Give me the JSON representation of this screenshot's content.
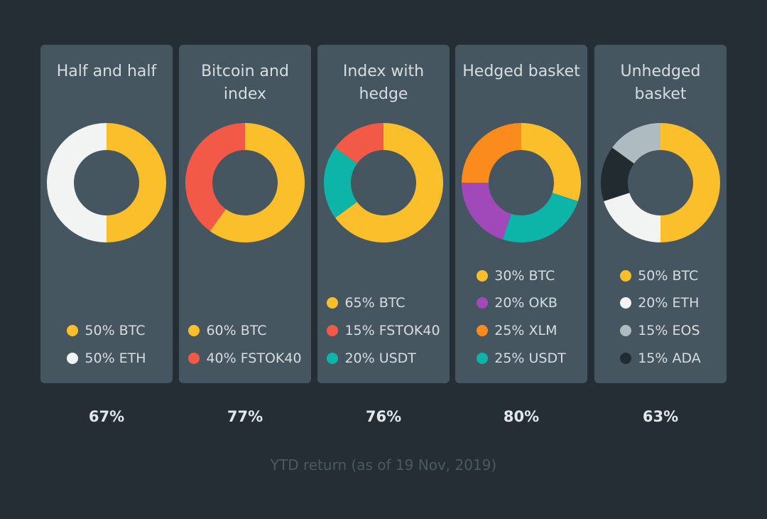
{
  "chart_data": {
    "type": "pie",
    "subtype": "donut",
    "caption": "YTD return (as of 19 Nov, 2019)",
    "colors": {
      "BTC": "#fbbf2c",
      "ETH": "#f2f3f3",
      "FSTOK40": "#f25a47",
      "USDT": "#0db5a8",
      "OKB": "#a148bb",
      "XLM": "#fb8b1c",
      "EOS": "#aebbc0",
      "ADA": "#222b30"
    },
    "portfolios": [
      {
        "title": "Half and half",
        "return": "67%",
        "slices": [
          {
            "asset": "BTC",
            "value": 50,
            "label": "50% BTC"
          },
          {
            "asset": "ETH",
            "value": 50,
            "label": "50% ETH"
          }
        ]
      },
      {
        "title": "Bitcoin and index",
        "return": "77%",
        "slices": [
          {
            "asset": "BTC",
            "value": 60,
            "label": "60% BTC"
          },
          {
            "asset": "FSTOK40",
            "value": 40,
            "label": "40% FSTOK40"
          }
        ]
      },
      {
        "title": "Index with hedge",
        "return": "76%",
        "slices": [
          {
            "asset": "BTC",
            "value": 65,
            "label": "65% BTC"
          },
          {
            "asset": "FSTOK40",
            "value": 15,
            "label": "15% FSTOK40"
          },
          {
            "asset": "USDT",
            "value": 20,
            "label": "20% USDT"
          }
        ],
        "draw_order": [
          0,
          2,
          1
        ]
      },
      {
        "title": "Hedged basket",
        "return": "80%",
        "slices": [
          {
            "asset": "BTC",
            "value": 30,
            "label": "30% BTC"
          },
          {
            "asset": "OKB",
            "value": 20,
            "label": "20% OKB"
          },
          {
            "asset": "XLM",
            "value": 25,
            "label": "25% XLM"
          },
          {
            "asset": "USDT",
            "value": 25,
            "label": "25% USDT"
          }
        ],
        "draw_order": [
          0,
          3,
          1,
          2
        ]
      },
      {
        "title": "Unhedged basket",
        "return": "63%",
        "slices": [
          {
            "asset": "BTC",
            "value": 50,
            "label": "50% BTC"
          },
          {
            "asset": "ETH",
            "value": 20,
            "label": "20% ETH"
          },
          {
            "asset": "EOS",
            "value": 15,
            "label": "15% EOS"
          },
          {
            "asset": "ADA",
            "value": 15,
            "label": "15% ADA"
          }
        ],
        "draw_order": [
          0,
          1,
          3,
          2
        ]
      }
    ]
  }
}
